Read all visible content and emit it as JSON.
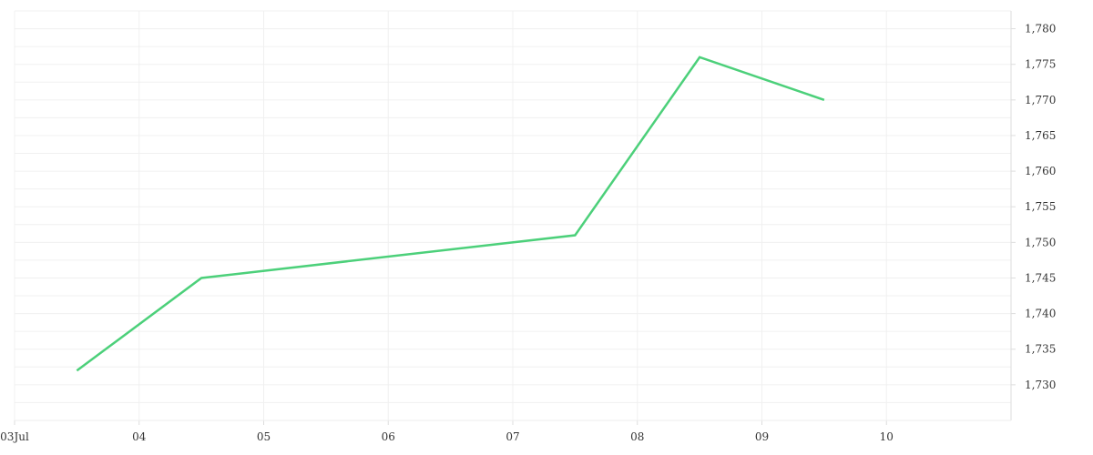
{
  "chart_data": {
    "type": "line",
    "title": "",
    "xlabel": "",
    "ylabel": "",
    "x_ticks": [
      "03Jul",
      "04",
      "05",
      "06",
      "07",
      "08",
      "09",
      "10"
    ],
    "y_ticks": [
      "1,730",
      "1,735",
      "1,740",
      "1,745",
      "1,750",
      "1,755",
      "1,760",
      "1,765",
      "1,770",
      "1,775",
      "1,780"
    ],
    "xlim": [
      "2024-07-03",
      "2024-07-11"
    ],
    "ylim": [
      1725,
      1782.5
    ],
    "grid": true,
    "legend": "none",
    "series": [
      {
        "color": "#4cd07a",
        "points": [
          {
            "x": "2024-07-03T12:00",
            "y": 1732
          },
          {
            "x": "2024-07-04T12:00",
            "y": 1745
          },
          {
            "x": "2024-07-07T12:00",
            "y": 1751
          },
          {
            "x": "2024-07-08T12:00",
            "y": 1776
          },
          {
            "x": "2024-07-09T12:00",
            "y": 1770
          }
        ]
      }
    ]
  }
}
